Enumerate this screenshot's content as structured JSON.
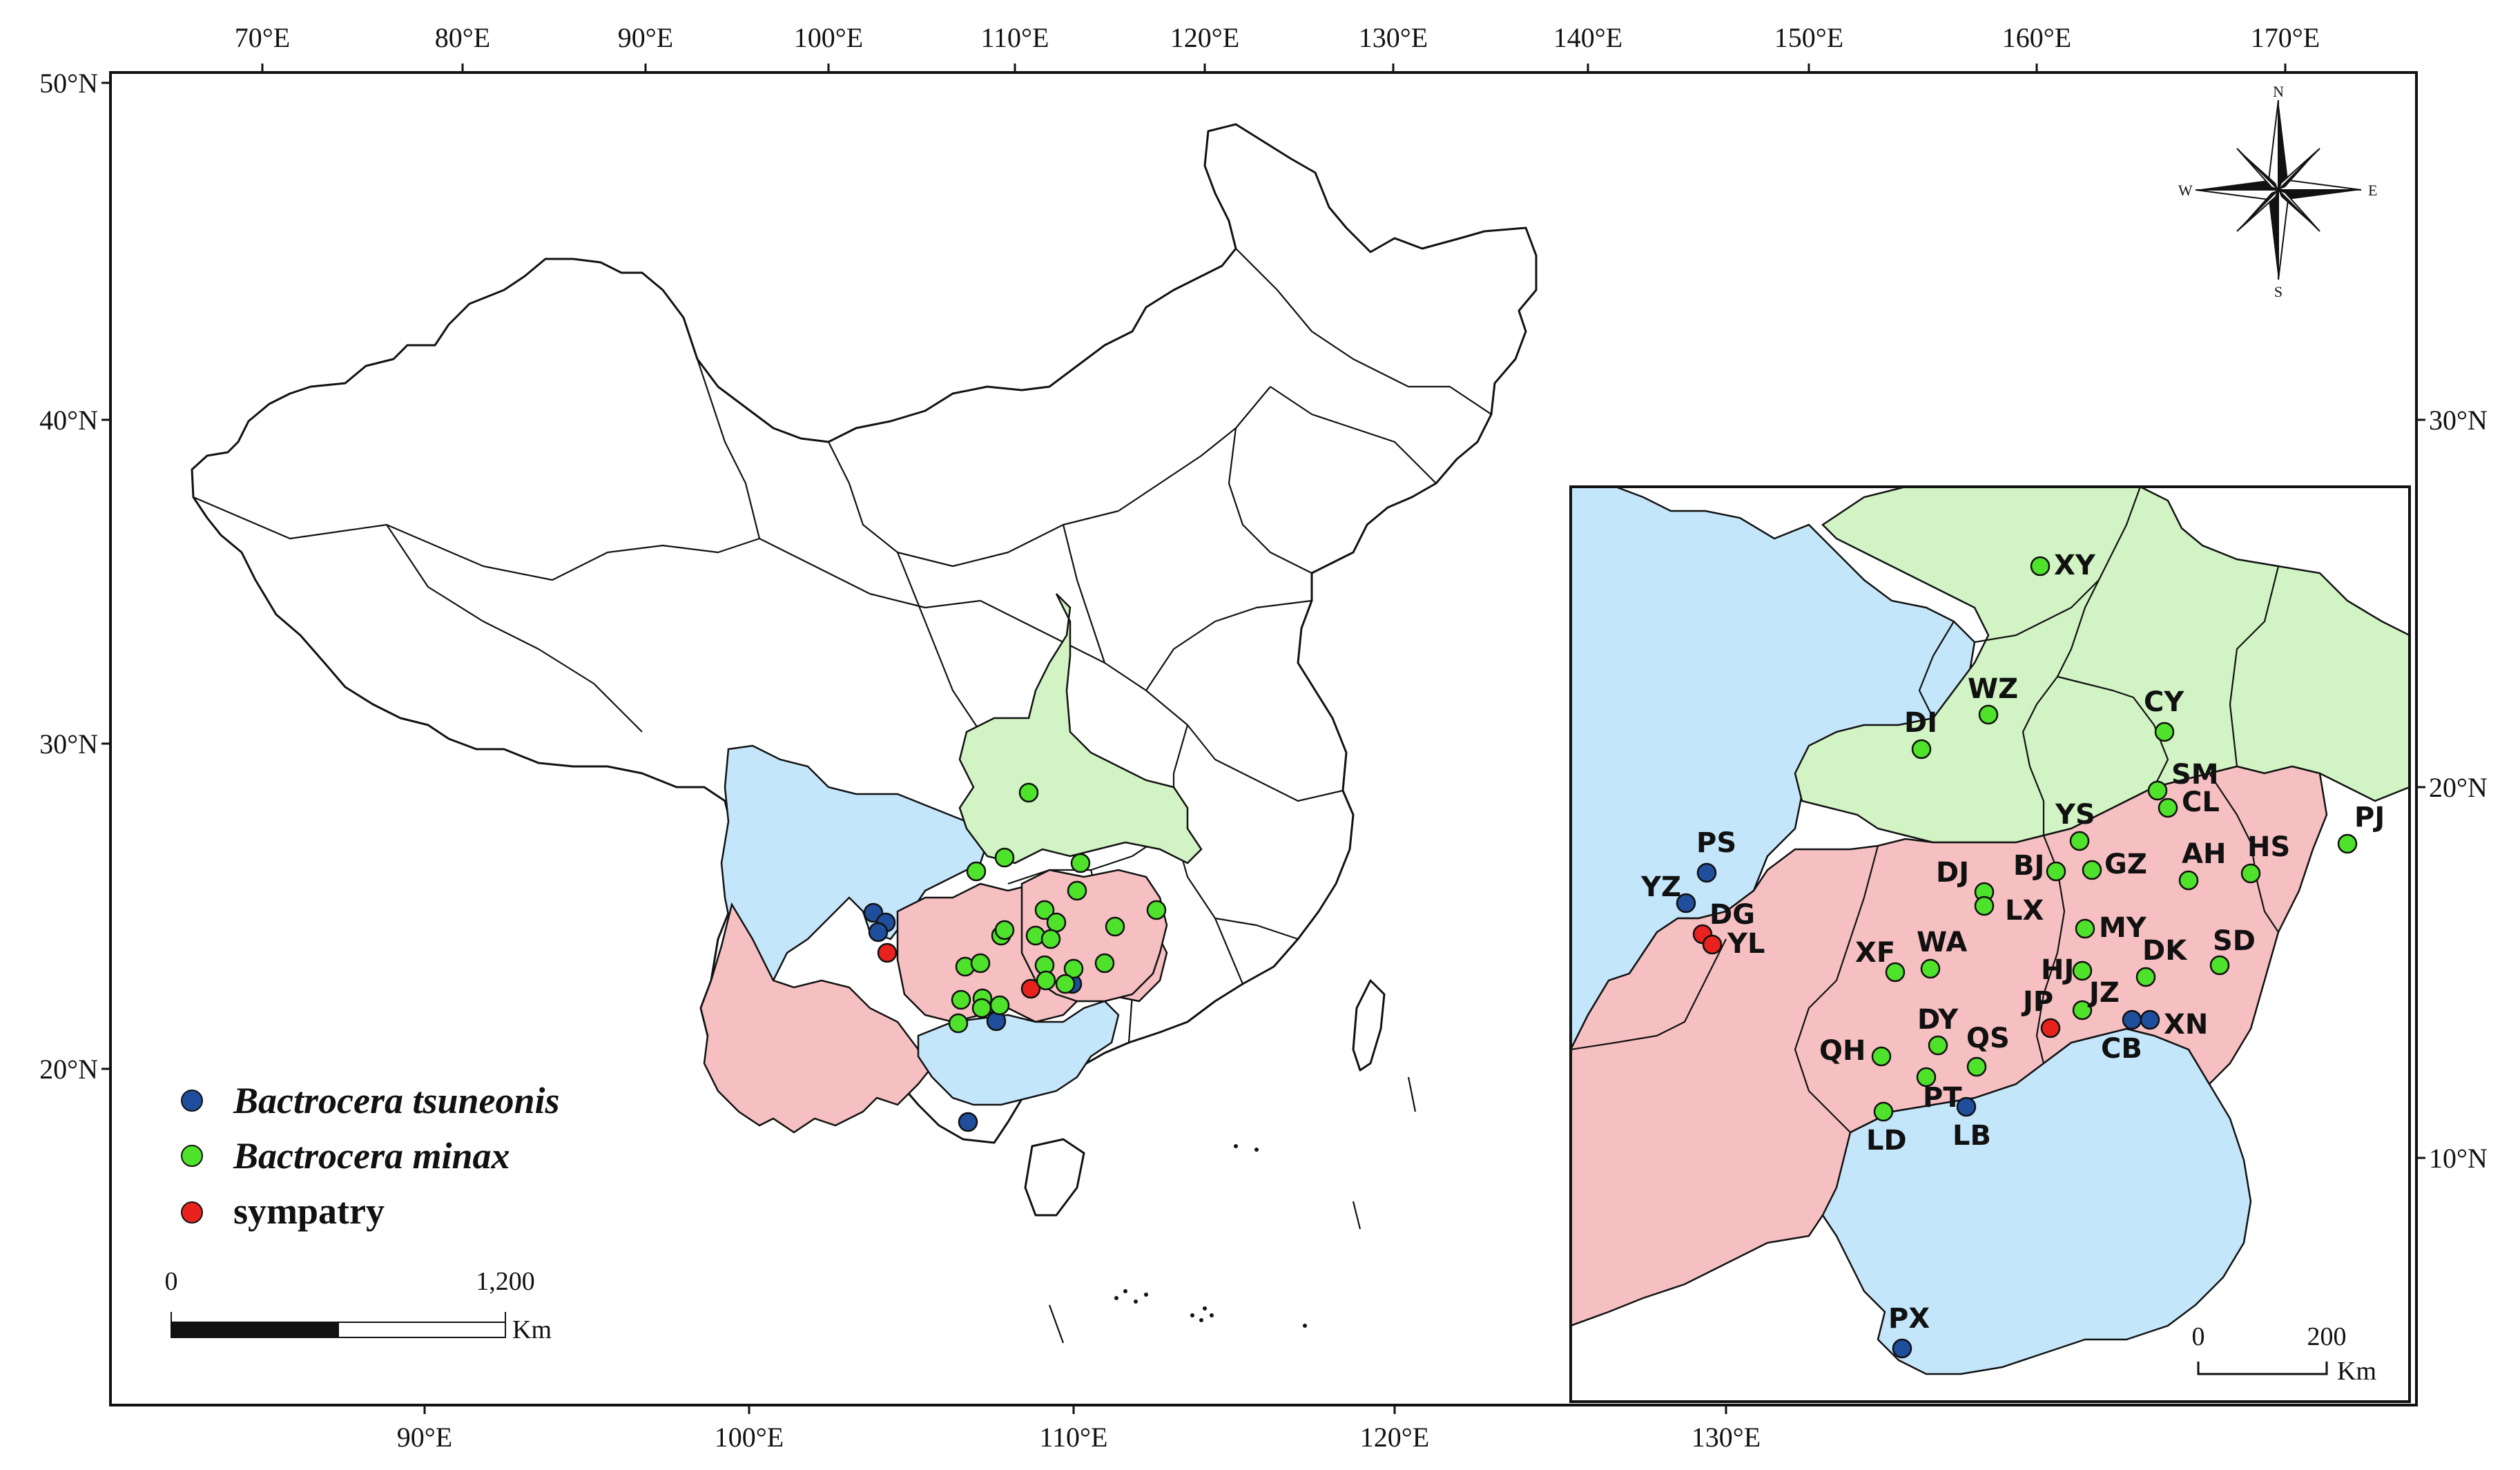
{
  "main_map": {
    "top_axis": [
      "70°E",
      "80°E",
      "90°E",
      "100°E",
      "110°E",
      "120°E",
      "130°E",
      "140°E",
      "150°E",
      "160°E",
      "170°E"
    ],
    "bottom_axis": [
      "90°E",
      "100°E",
      "110°E",
      "120°E",
      "130°E"
    ],
    "left_axis": [
      "50°N",
      "40°N",
      "30°N",
      "20°N"
    ],
    "right_axis": [
      "30°N",
      "20°N",
      "10°N"
    ]
  },
  "legend": {
    "items": [
      {
        "label": "Bactrocera tsuneonis",
        "color": "#1f4f9c"
      },
      {
        "label": "Bactrocera minax",
        "color": "#4ee32a"
      },
      {
        "label": "sympatry",
        "color": "#e8231e"
      }
    ]
  },
  "scale_bar": {
    "start": "0",
    "end": "1,200",
    "unit": "Km"
  },
  "compass": {
    "n": "N",
    "s": "S",
    "e": "E",
    "w": "W"
  },
  "inset": {
    "scale_bar": {
      "start": "0",
      "end": "200",
      "unit": "Km"
    },
    "region_colors": {
      "sichuan_guangxi": "#c4e6fb",
      "hubei_shaanxi": "#d2f3c4",
      "guizhou_hunan_yunnan": "#f6c0c2"
    },
    "sites": [
      {
        "code": "XY",
        "species": "minax"
      },
      {
        "code": "WZ",
        "species": "minax"
      },
      {
        "code": "CY",
        "species": "minax"
      },
      {
        "code": "DI",
        "species": "minax"
      },
      {
        "code": "SM",
        "species": "minax"
      },
      {
        "code": "CL",
        "species": "minax"
      },
      {
        "code": "PJ",
        "species": "minax"
      },
      {
        "code": "YS",
        "species": "minax"
      },
      {
        "code": "HS",
        "species": "minax"
      },
      {
        "code": "BJ",
        "species": "minax"
      },
      {
        "code": "GZ",
        "species": "minax"
      },
      {
        "code": "AH",
        "species": "minax"
      },
      {
        "code": "DJ",
        "species": "minax"
      },
      {
        "code": "LX",
        "species": "minax"
      },
      {
        "code": "MY",
        "species": "minax"
      },
      {
        "code": "SD",
        "species": "minax"
      },
      {
        "code": "XF",
        "species": "minax"
      },
      {
        "code": "WA",
        "species": "minax"
      },
      {
        "code": "DK",
        "species": "minax"
      },
      {
        "code": "HJ",
        "species": "minax"
      },
      {
        "code": "JZ",
        "species": "minax"
      },
      {
        "code": "DY",
        "species": "minax"
      },
      {
        "code": "QS",
        "species": "minax"
      },
      {
        "code": "QH",
        "species": "minax"
      },
      {
        "code": "PT",
        "species": "minax"
      },
      {
        "code": "LD",
        "species": "minax"
      },
      {
        "code": "PS",
        "species": "tsuneonis"
      },
      {
        "code": "YZ",
        "species": "tsuneonis"
      },
      {
        "code": "LB",
        "species": "tsuneonis"
      },
      {
        "code": "CB",
        "species": "tsuneonis"
      },
      {
        "code": "XN",
        "species": "tsuneonis"
      },
      {
        "code": "PX",
        "species": "tsuneonis"
      },
      {
        "code": "DG",
        "species": "sympatry"
      },
      {
        "code": "YL",
        "species": "sympatry"
      },
      {
        "code": "JP",
        "species": "sympatry"
      }
    ]
  }
}
